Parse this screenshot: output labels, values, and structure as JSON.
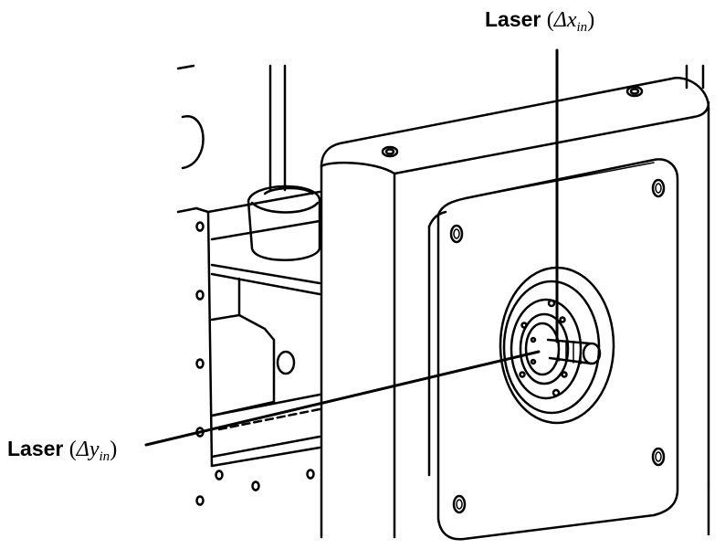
{
  "labels": {
    "laser_x": {
      "name": "Laser",
      "symbol": "Δx",
      "subscript": "in"
    },
    "laser_y": {
      "name": "Laser",
      "symbol": "Δy",
      "subscript": "in"
    }
  }
}
